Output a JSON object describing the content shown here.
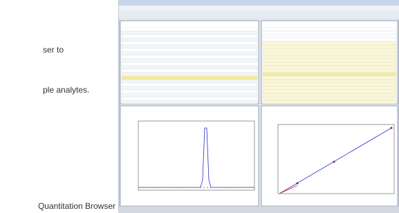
{
  "body": {
    "lines": [
      "ser to",
      "ple analytes."
    ]
  },
  "figure": {
    "caption": "Quantitation Browser"
  }
}
